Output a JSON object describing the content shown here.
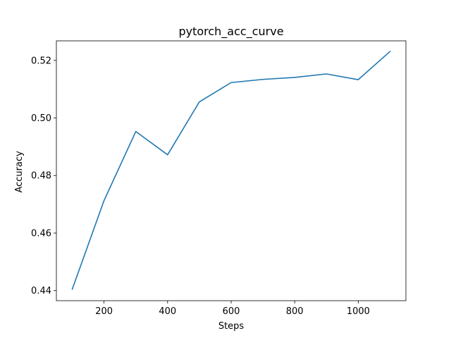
{
  "chart_data": {
    "type": "line",
    "title": "pytorch_acc_curve",
    "xlabel": "Steps",
    "ylabel": "Accuracy",
    "xlim": [
      50,
      1150
    ],
    "ylim": [
      0.4365,
      0.5268
    ],
    "xticks": [
      200,
      400,
      600,
      800,
      1000
    ],
    "yticks": [
      0.44,
      0.46,
      0.48,
      0.5,
      0.52
    ],
    "ytick_labels": [
      "0.44",
      "0.46",
      "0.48",
      "0.50",
      "0.52"
    ],
    "grid": false,
    "line_color": "#1f77b4",
    "series": [
      {
        "x": [
          100,
          200,
          300,
          400,
          500,
          600,
          700,
          800,
          900,
          1000,
          1100
        ],
        "values": [
          0.4405,
          0.4713,
          0.4953,
          0.4872,
          0.5056,
          0.5123,
          0.5134,
          0.5141,
          0.5153,
          0.5133,
          0.5231
        ]
      }
    ]
  }
}
